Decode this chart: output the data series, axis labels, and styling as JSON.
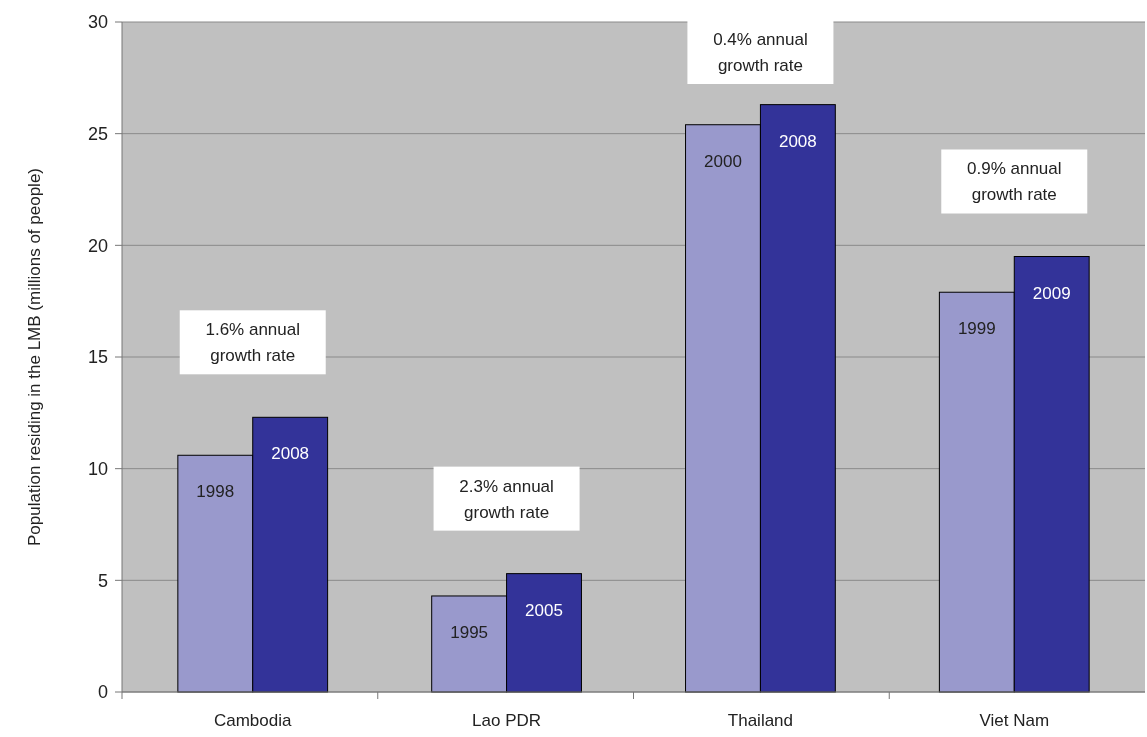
{
  "chart_data": {
    "type": "bar",
    "ylabel": "Population residing in the LMB (millions of people)",
    "categories": [
      "Cambodia",
      "Lao PDR",
      "Thailand",
      "Viet Nam"
    ],
    "series": [
      {
        "color": "#9999cc",
        "values": [
          10.6,
          4.3,
          25.4,
          17.9
        ]
      },
      {
        "color": "#333399",
        "values": [
          12.3,
          5.3,
          26.3,
          19.5
        ]
      }
    ],
    "ylim": [
      0,
      30
    ],
    "yticks": [
      0,
      5,
      10,
      15,
      20,
      25,
      30
    ],
    "grid": "y",
    "annotations": [
      "1.6% annual growth rate",
      "2.3% annual growth rate",
      "0.4% annual growth rate",
      "0.9% annual growth rate",
      {
        "text": "1998",
        "x": "Cambodia",
        "y": 10.6
      },
      {
        "text": "2008",
        "x": "Cambodia",
        "y": 12.3
      },
      {
        "text": "1995",
        "x": "Lao PDR",
        "y": 4.3
      },
      {
        "text": "2005",
        "x": "Lao PDR",
        "y": 5.3
      },
      {
        "text": "2000",
        "x": "Thailand",
        "y": 25.4
      },
      {
        "text": "2008",
        "x": "Thailand",
        "y": 26.3
      },
      {
        "text": "1999",
        "x": "Viet Nam",
        "y": 17.9
      },
      {
        "text": "2009",
        "x": "Viet Nam",
        "y": 19.5
      }
    ]
  }
}
